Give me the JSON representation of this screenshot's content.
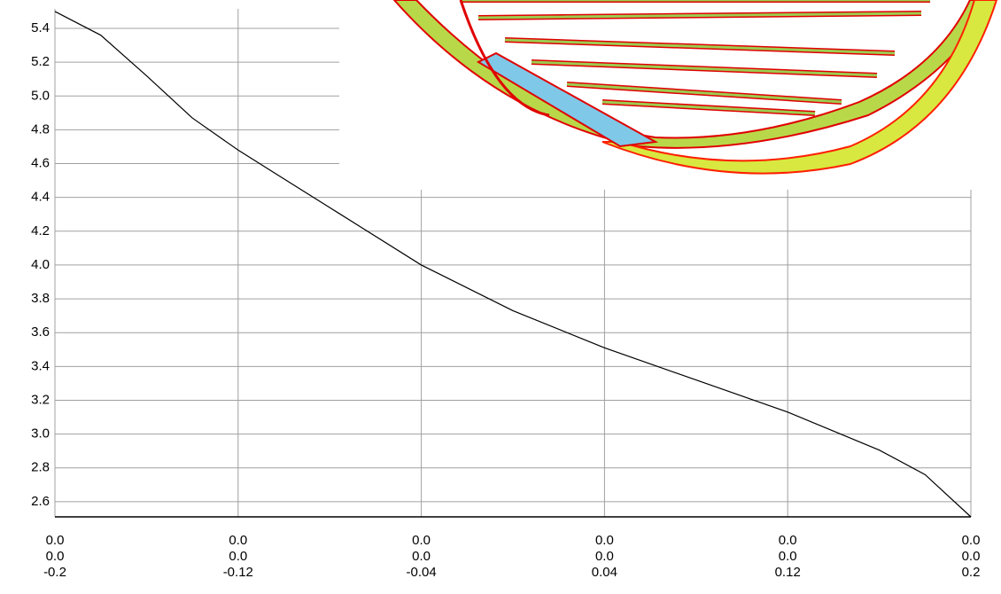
{
  "chart_data": {
    "type": "line",
    "x": [
      -0.2,
      -0.18,
      -0.16,
      -0.14,
      -0.12,
      -0.1,
      -0.08,
      -0.04,
      0,
      0.04,
      0.08,
      0.12,
      0.16,
      0.18,
      0.2
    ],
    "series": [
      {
        "color": "#000000",
        "values": [
          5.5,
          5.36,
          5.12,
          4.87,
          4.68,
          4.51,
          4.34,
          4.0,
          3.73,
          3.51,
          3.32,
          3.13,
          2.905,
          2.76,
          2.51
        ]
      }
    ],
    "xlim": [
      -0.2,
      0.2
    ],
    "xticks": [
      -0.2,
      -0.12,
      -0.04,
      0.04,
      0.12,
      0.2
    ],
    "xtick_upper_rows": [
      [
        "0.0",
        "0.0",
        "0.0",
        "0.0",
        "0.0",
        "0.0"
      ],
      [
        "0.0",
        "0.0",
        "0.0",
        "0.0",
        "0.0",
        "0.0"
      ]
    ],
    "ylim": [
      2.51,
      5.568
    ],
    "yticks": [
      2.6,
      2.8,
      {
        "value": 3,
        "label": "3.0"
      },
      3.2,
      3.4,
      3.6,
      3.8,
      {
        "value": 4,
        "label": "4.0"
      },
      4.2,
      4.4,
      4.6,
      4.8,
      {
        "value": 5,
        "label": "5.0"
      },
      5.2,
      5.4
    ],
    "grid": true,
    "grid_color": "#a0a0a0"
  }
}
